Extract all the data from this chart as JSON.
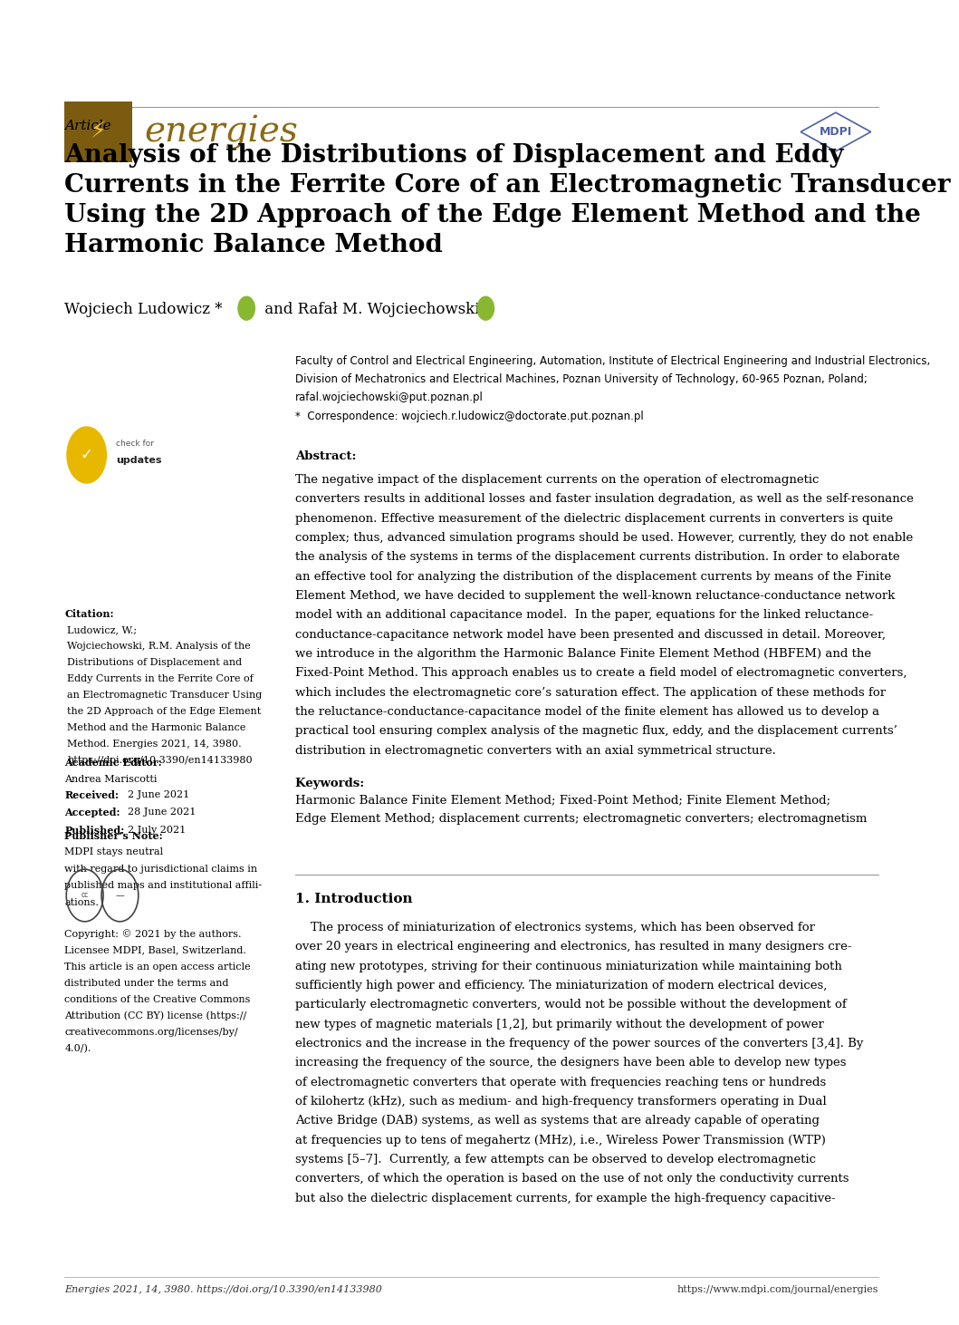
{
  "page_bg": "#ffffff",
  "page_width": 10.2,
  "page_height": 14.42,
  "journal_name": "energies",
  "journal_color": "#8B6914",
  "journal_fontsize": 28,
  "article_label": "Article",
  "article_label_fontsize": 11,
  "title": "Analysis of the Distributions of Displacement and Eddy\nCurrents in the Ferrite Core of an Electromagnetic Transducer\nUsing the 2D Approach of the Edge Element Method and the\nHarmonic Balance Method",
  "title_fontsize": 20,
  "title_color": "#000000",
  "authors_fontsize": 12,
  "affiliation_line1": "Faculty of Control and Electrical Engineering, Automation, Institute of Electrical Engineering and Industrial Electronics,",
  "affiliation_line2": "Division of Mechatronics and Electrical Machines, Poznan University of Technology, 60-965 Poznan, Poland;",
  "affiliation_line3": "rafal.wojciechowski@put.poznan.pl",
  "affiliation_line4": "*  Correspondence: wojciech.r.ludowicz@doctorate.put.poznan.pl",
  "affiliation_fontsize": 8.5,
  "abstract_title": "Abstract:",
  "abstract_text": "The negative impact of the displacement currents on the operation of electromagnetic converters results in additional losses and faster insulation degradation, as well as the self-resonance phenomenon. Effective measurement of the dielectric displacement currents in converters is quite complex; thus, advanced simulation programs should be used. However, currently, they do not enable the analysis of the systems in terms of the displacement currents distribution. In order to elaborate an effective tool for analyzing the distribution of the displacement currents by means of the Finite Element Method, we have decided to supplement the well-known reluctance-conductance network model with an additional capacitance model.  In the paper, equations for the linked reluctance-conductance-capacitance network model have been presented and discussed in detail. Moreover, we introduce in the algorithm the Harmonic Balance Finite Element Method (HBFEM) and the Fixed-Point Method. This approach enables us to create a field model of electromagnetic converters, which includes the electromagnetic core’s saturation effect. The application of these methods for the reluctance-conductance-capacitance model of the finite element has allowed us to develop a practical tool ensuring complex analysis of the magnetic flux, eddy, and the displacement currents’ distribution in electromagnetic converters with an axial symmetrical structure.",
  "abstract_fontsize": 9.5,
  "keywords_title": "Keywords:",
  "keywords_text": "Harmonic Balance Finite Element Method; Fixed-Point Method; Finite Element Method; Edge Element Method; displacement currents; electromagnetic converters; electromagnetism",
  "keywords_fontsize": 9.5,
  "citation_label": "Citation:",
  "citation_lines": [
    "Ludowicz, W.;",
    "Wojciechowski, R.M. Analysis of the",
    "Distributions of Displacement and",
    "Eddy Currents in the Ferrite Core of",
    "an Electromagnetic Transducer Using",
    "the 2D Approach of the Edge Element",
    "Method and the Harmonic Balance",
    "Method. Energies 2021, 14, 3980.",
    "https://doi.org/10.3390/en14133980"
  ],
  "citation_fontsize": 8,
  "academic_editor_label": "Academic Editor:",
  "academic_editor_text": "Andrea Mariscotti",
  "academic_editor_fontsize": 8,
  "received_label": "Received:",
  "received_text": "2 June 2021",
  "accepted_label": "Accepted:",
  "accepted_text": "28 June 2021",
  "published_label": "Published:",
  "published_text": "2 July 2021",
  "dates_fontsize": 8,
  "publisher_note_title": "Publisher’s Note:",
  "publisher_note_lines": [
    "MDPI stays neutral",
    "with regard to jurisdictional claims in",
    "published maps and institutional affili-",
    "ations."
  ],
  "publisher_note_fontsize": 8,
  "copyright_lines": [
    "Copyright: © 2021 by the authors.",
    "Licensee MDPI, Basel, Switzerland.",
    "This article is an open access article",
    "distributed under the terms and",
    "conditions of the Creative Commons",
    "Attribution (CC BY) license (https://",
    "creativecommons.org/licenses/by/",
    "4.0/)."
  ],
  "copyright_fontsize": 8,
  "section_title": "1. Introduction",
  "section_title_fontsize": 11,
  "intro_text": "    The process of miniaturization of electronics systems, which has been observed for over 20 years in electrical engineering and electronics, has resulted in many designers creating new prototypes, striving for their continuous miniaturization while maintaining both sufficiently high power and efficiency. The miniaturization of modern electrical devices, particularly electromagnetic converters, would not be possible without the development of new types of magnetic materials [1,2], but primarily without the development of power electronics and the increase in the frequency of the power sources of the converters [3,4]. By increasing the frequency of the source, the designers have been able to develop new types of electromagnetic converters that operate with frequencies reaching tens or hundreds of kilohertz (kHz), such as medium- and high-frequency transformers operating in Dual Active Bridge (DAB) systems, as well as systems that are already capable of operating at frequencies up to tens of megahertz (MHz), i.e., Wireless Power Transmission (WTP) systems [5–7].  Currently, a few attempts can be observed to develop electromagnetic converters, of which the operation is based on the use of not only the conductivity currents but also the dielectric displacement currents, for example the high-frequency capacitive-",
  "intro_text_fontsize": 9.5,
  "footer_left": "Energies 2021, 14, 3980. https://doi.org/10.3390/en14133980",
  "footer_right": "https://www.mdpi.com/journal/energies",
  "footer_fontsize": 8,
  "hr_color": "#999999",
  "logo_bg_color": "#7B5B10",
  "logo_lightning_color": "#F0C040",
  "mdpi_diamond_color": "#5060A0"
}
